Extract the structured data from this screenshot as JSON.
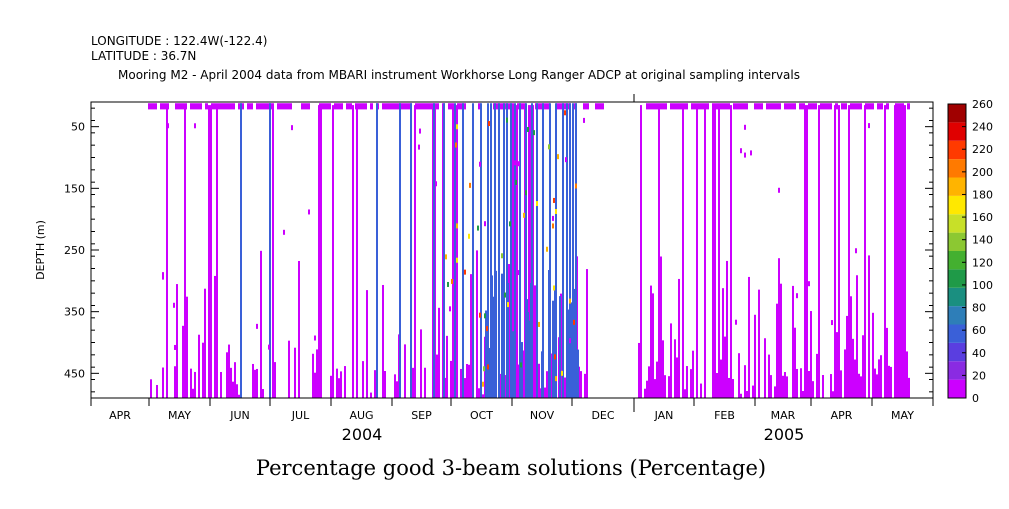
{
  "header": {
    "longitude": "LONGITUDE : 122.4W(-122.4)",
    "latitude": "LATITUDE : 36.7N",
    "subtitle": "Mooring M2 - April 2004 data from MBARI instrument Workhorse Long Ranger ADCP at original sampling intervals"
  },
  "chart_data": {
    "type": "heatmap",
    "title": "Percentage good 3-beam solutions (Percentage)",
    "ylabel": "DEPTH (m)",
    "y_direction": "depth increasing downward",
    "ylim": [
      10,
      490
    ],
    "yticks": [
      50,
      150,
      250,
      350,
      450
    ],
    "x_months": [
      "APR",
      "MAY",
      "JUN",
      "JUL",
      "AUG",
      "SEP",
      "OCT",
      "NOV",
      "DEC",
      "JAN",
      "FEB",
      "MAR",
      "APR",
      "MAY"
    ],
    "x_years": [
      "2004",
      "2005"
    ],
    "colorbar": {
      "min": 0,
      "max": 260,
      "step": 20,
      "labels": [
        "0",
        "20",
        "40",
        "60",
        "80",
        "100",
        "120",
        "140",
        "160",
        "180",
        "200",
        "220",
        "240",
        "260"
      ],
      "colors": [
        "#cc00ff",
        "#8a2be2",
        "#5a3ee0",
        "#3a60d8",
        "#2e7eb8",
        "#1a8f80",
        "#1f9a48",
        "#44b030",
        "#8cc832",
        "#c8e028",
        "#ffe800",
        "#ffb400",
        "#ff7a00",
        "#ff3a00",
        "#e00000",
        "#a00000"
      ]
    },
    "series": [
      {
        "values": [
          "dominant 0-20 (magenta) throughout the record; 40-60 (blue) vertical bands concentrated Sep-Nov 2004; sparse 160-240 values in Oct-Nov 2004"
        ]
      }
    ]
  }
}
